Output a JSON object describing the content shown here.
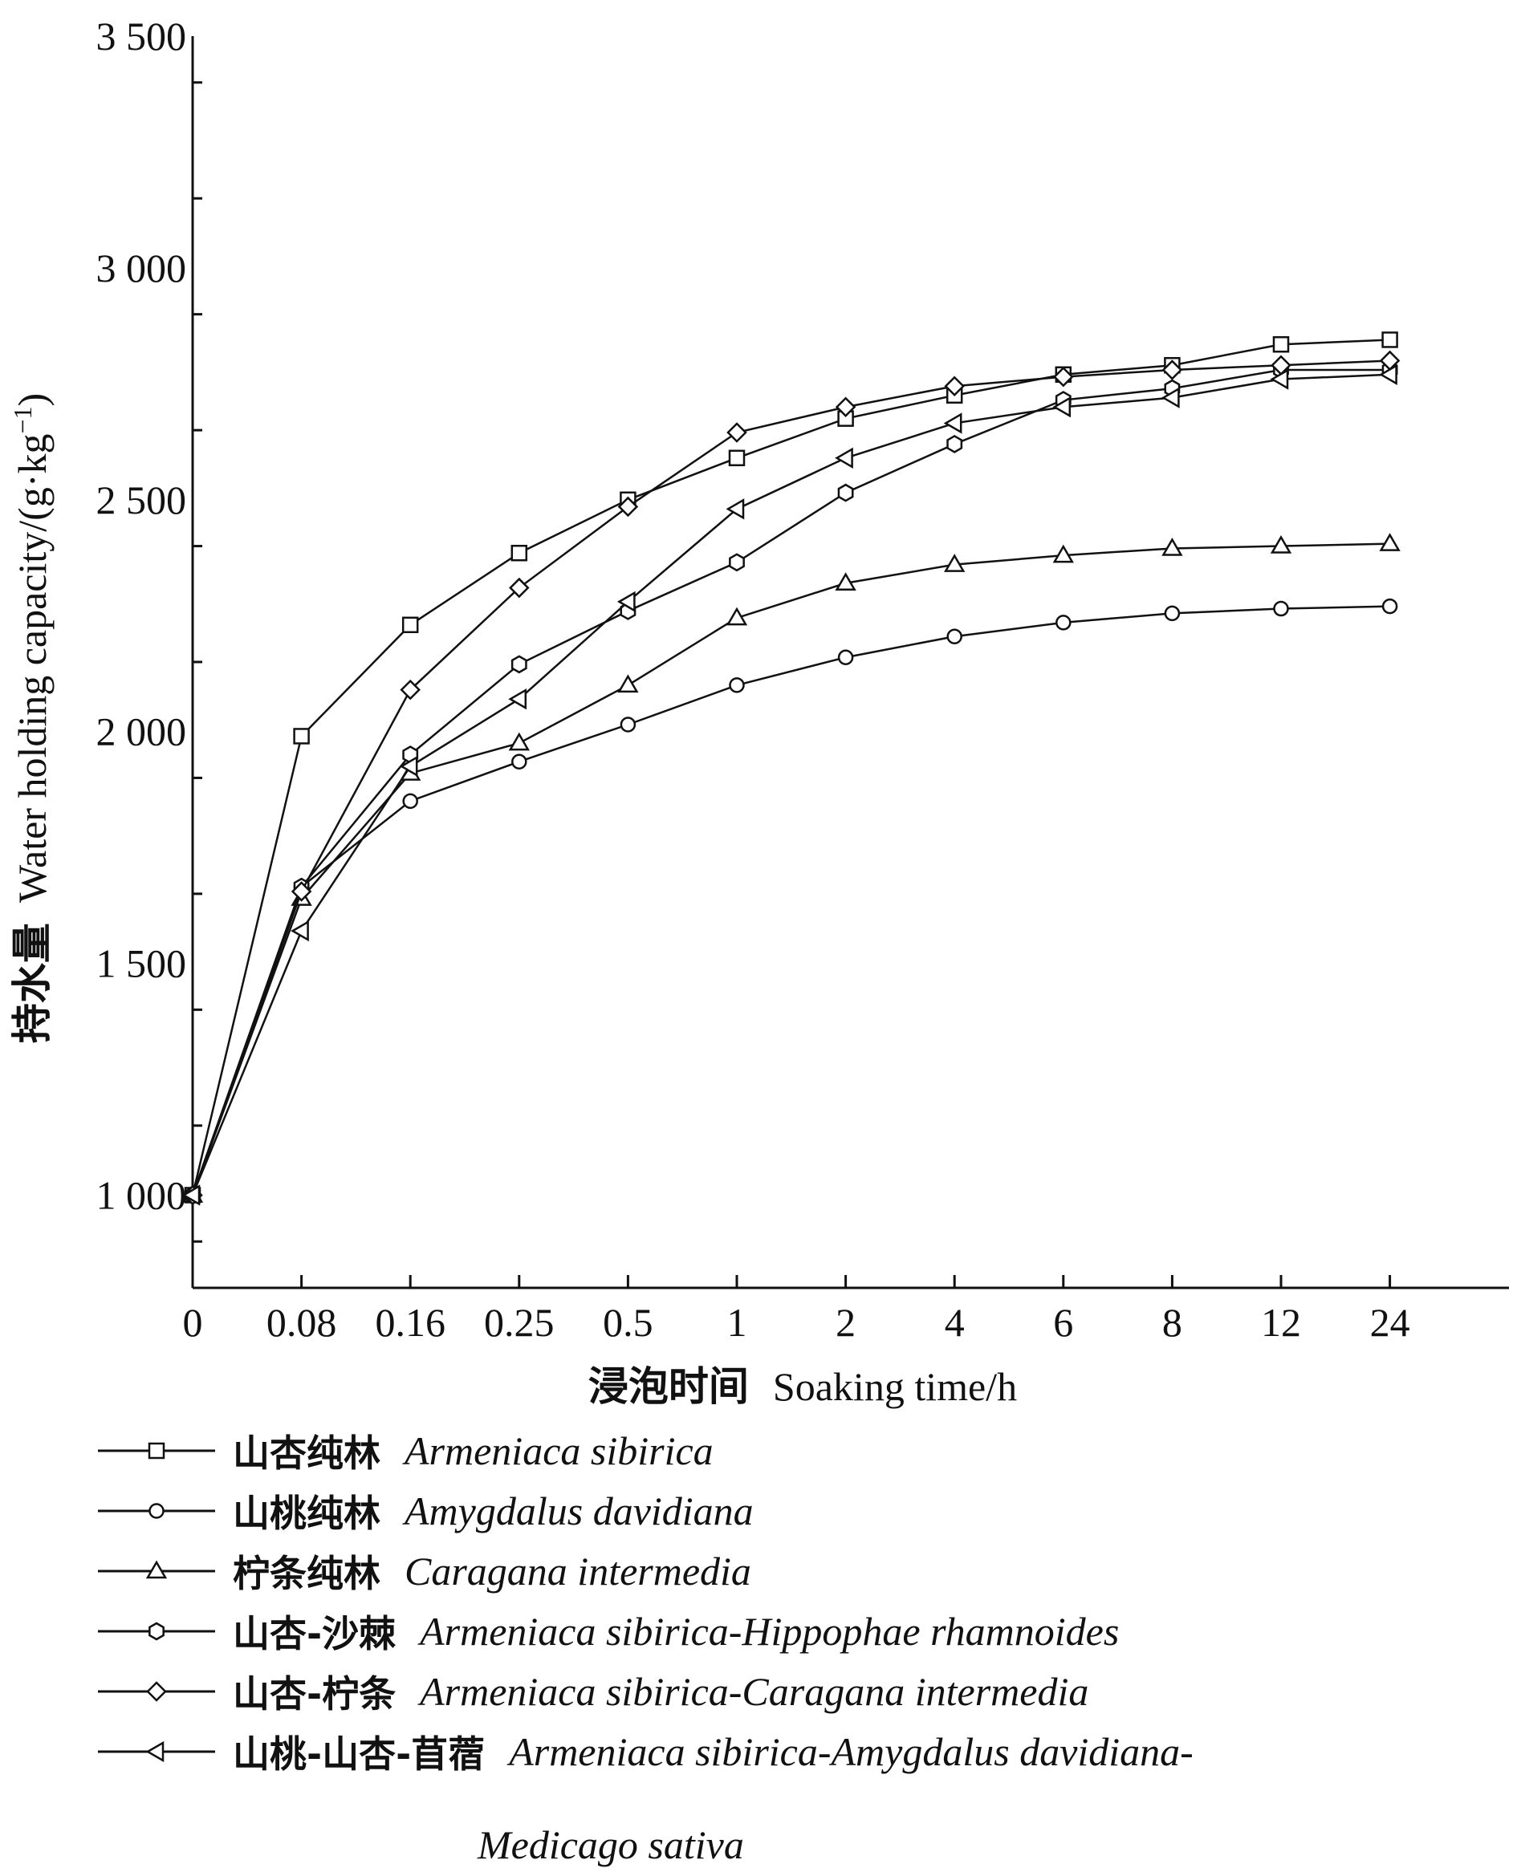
{
  "chart_data": {
    "type": "line",
    "xlabel_cn": "浸泡时间",
    "xlabel_en": "Soaking time/h",
    "ylabel_cn": "持水量",
    "ylabel_en": "Water holding capacity/(g·kg",
    "ylabel_sup": "−1",
    "ylabel_end": ")",
    "categories": [
      "0",
      "0.08",
      "0.16",
      "0.25",
      "0.5",
      "1",
      "2",
      "4",
      "6",
      "8",
      "12",
      "24"
    ],
    "ylim": [
      800,
      3500
    ],
    "yticks": [
      1000,
      1500,
      2000,
      2500,
      3000,
      3500
    ],
    "yticklabels": [
      "1 000",
      "1 500",
      "2 000",
      "2 500",
      "3 000",
      "3 500"
    ],
    "series": [
      {
        "name_cn": "山杏纯林",
        "name_en": "Armeniaca sibirica",
        "marker": "square",
        "values": [
          1000,
          1990,
          2230,
          2385,
          2500,
          2590,
          2675,
          2725,
          2770,
          2790,
          2835,
          2845
        ]
      },
      {
        "name_cn": "山桃纯林",
        "name_en": "Amygdalus davidiana",
        "marker": "circle",
        "values": [
          1000,
          1665,
          1850,
          1935,
          2015,
          2100,
          2160,
          2205,
          2235,
          2255,
          2265,
          2270
        ]
      },
      {
        "name_cn": "柠条纯林",
        "name_en": "Caragana intermedia",
        "marker": "triangle-up",
        "values": [
          1000,
          1640,
          1910,
          1975,
          2100,
          2245,
          2320,
          2360,
          2380,
          2395,
          2400,
          2405
        ]
      },
      {
        "name_cn": "山杏-沙棘",
        "name_en": "Armeniaca sibirica-Hippophae rhamnoides",
        "marker": "hexagon",
        "values": [
          1000,
          1665,
          1950,
          2145,
          2260,
          2365,
          2515,
          2620,
          2715,
          2740,
          2780,
          2780
        ]
      },
      {
        "name_cn": "山杏-柠条",
        "name_en": "Armeniaca sibirica-Caragana intermedia",
        "marker": "diamond",
        "values": [
          1000,
          1655,
          2090,
          2310,
          2485,
          2645,
          2700,
          2745,
          2765,
          2780,
          2790,
          2800
        ]
      },
      {
        "name_cn": "山桃-山杏-苜蓿",
        "name_en": "Armeniaca sibirica-Amygdalus davidiana-",
        "name_en2": "Medicago sativa",
        "marker": "triangle-left",
        "values": [
          1000,
          1570,
          1925,
          2070,
          2280,
          2480,
          2590,
          2665,
          2700,
          2720,
          2760,
          2770
        ]
      }
    ]
  }
}
